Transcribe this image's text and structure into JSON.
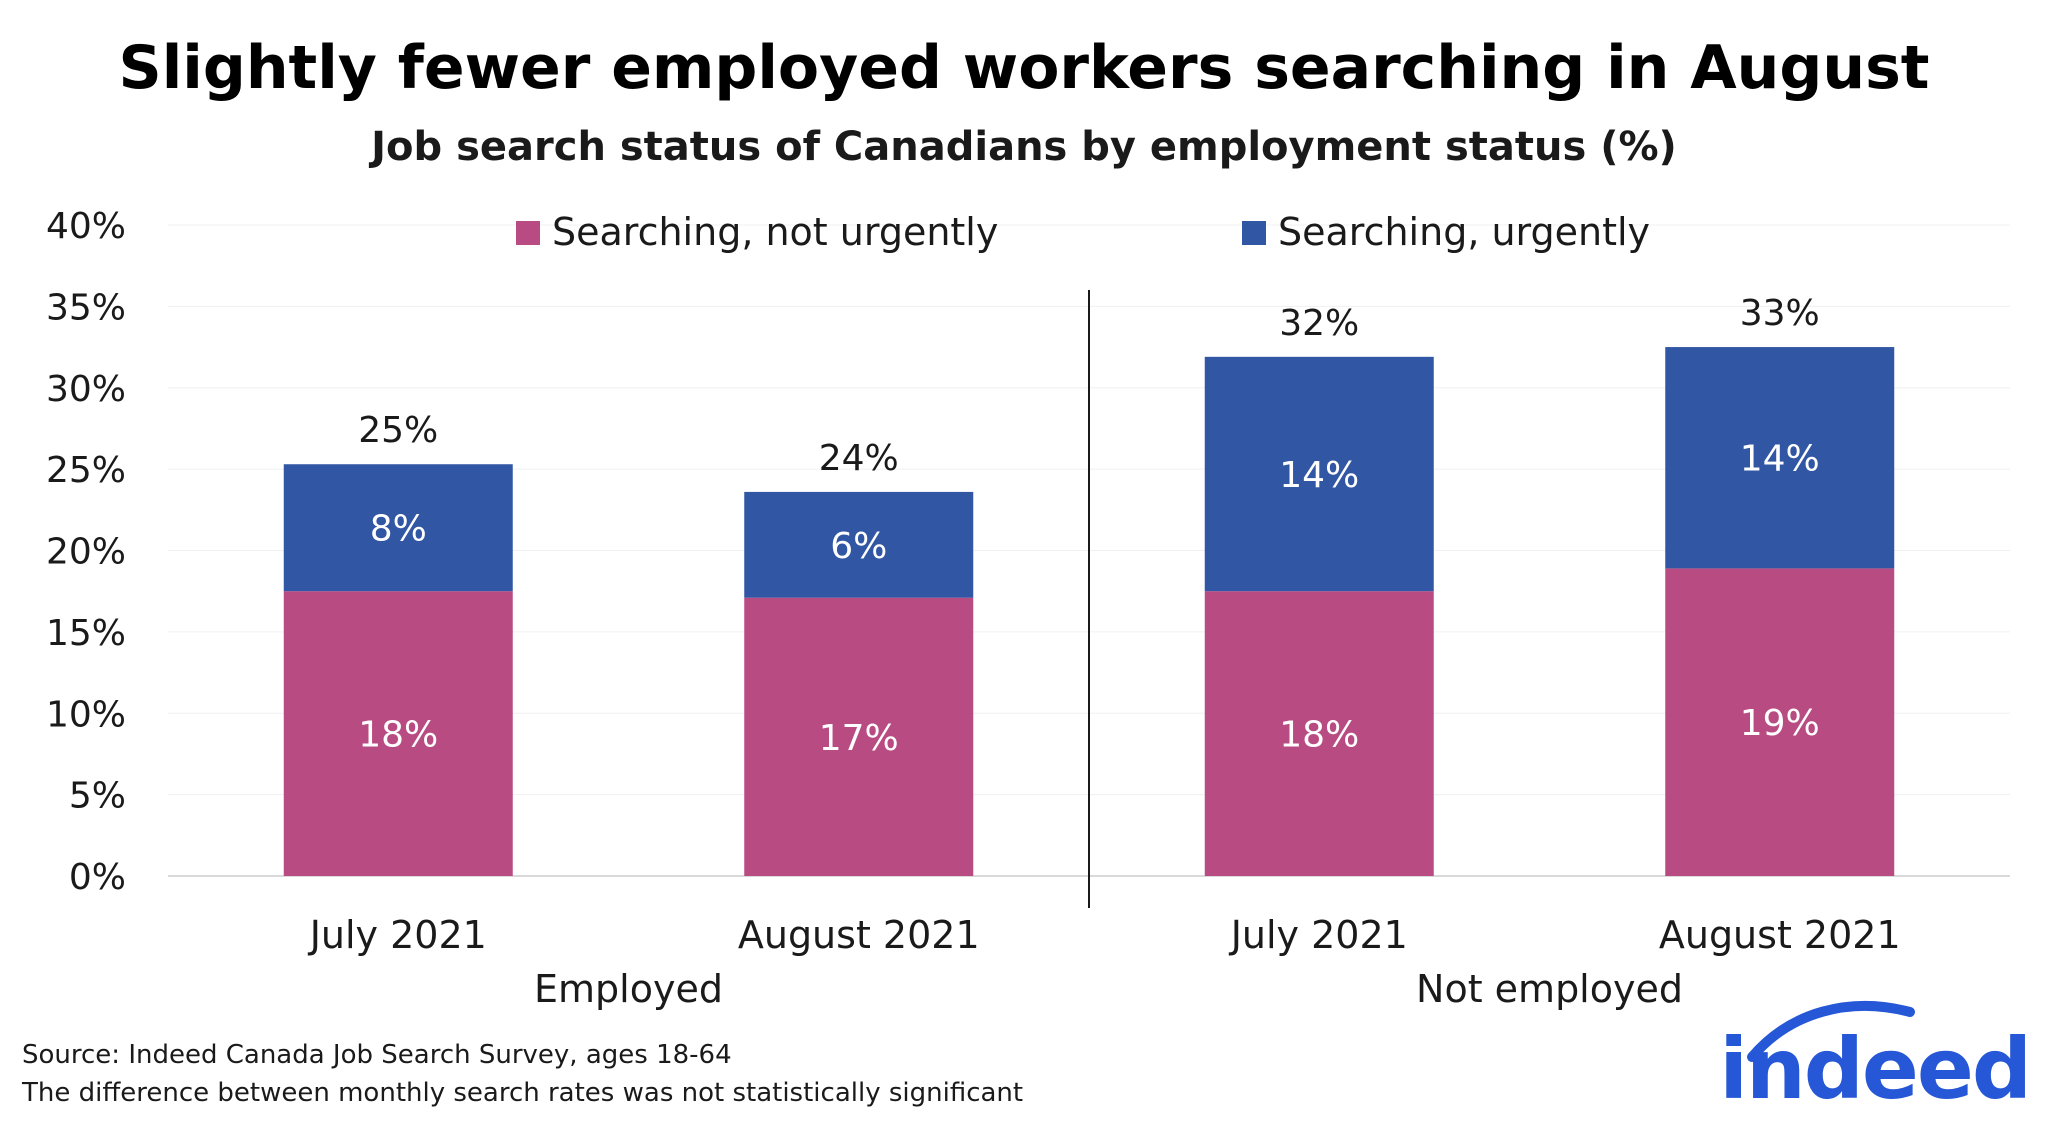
{
  "chart_data": {
    "type": "bar",
    "stacked": true,
    "title": "Slightly fewer employed workers searching in August",
    "subtitle": "Job search status of Canadians by employment status (%)",
    "ylim": [
      0,
      40
    ],
    "yticks": [
      "0%",
      "5%",
      "10%",
      "15%",
      "20%",
      "25%",
      "30%",
      "35%",
      "40%"
    ],
    "ytick_values": [
      0,
      5,
      10,
      15,
      20,
      25,
      30,
      35,
      40
    ],
    "groups": [
      {
        "name": "Employed",
        "categories": [
          "July 2021",
          "August 2021"
        ]
      },
      {
        "name": "Not employed",
        "categories": [
          "July 2021",
          "August 2021"
        ]
      }
    ],
    "categories": [
      "July 2021",
      "August 2021",
      "July 2021",
      "August 2021"
    ],
    "series": [
      {
        "name": "Searching, not urgently",
        "color": "#b84c82",
        "values": [
          17.5,
          17.1,
          17.5,
          18.9
        ],
        "labels": [
          "18%",
          "17%",
          "18%",
          "19%"
        ]
      },
      {
        "name": "Searching, urgently",
        "color": "#3156a3",
        "values": [
          7.8,
          6.5,
          14.4,
          13.6
        ],
        "labels": [
          "8%",
          "6%",
          "14%",
          "14%"
        ]
      }
    ],
    "totals": [
      "25%",
      "24%",
      "32%",
      "33%"
    ],
    "legend_position": "top"
  },
  "notes": {
    "source": "Source: Indeed Canada Job Search Survey, ages 18-64",
    "significance": "The difference between monthly search rates was not statistically significant"
  },
  "logo": {
    "text": "indeed",
    "color": "#2557d6"
  }
}
